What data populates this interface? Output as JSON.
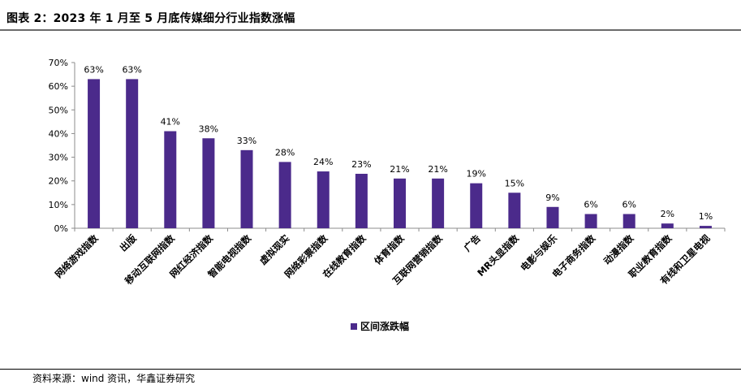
{
  "figure": {
    "title": "图表 2：2023 年 1 月至 5 月底传媒细分行业指数涨幅",
    "source": "资料来源：wind 资讯，华鑫证券研究"
  },
  "colors": {
    "bar": "#4b2a8b",
    "axis": "#8c8c8c",
    "rule": "#6b6b6b"
  },
  "chart_data": {
    "type": "bar",
    "title": "",
    "xlabel": "",
    "ylabel": "",
    "ylim": [
      0,
      70
    ],
    "yticks": [
      "0%",
      "10%",
      "20%",
      "30%",
      "40%",
      "50%",
      "60%",
      "70%"
    ],
    "grid": false,
    "legend_position": "bottom",
    "categories": [
      "网络游戏指数",
      "出版",
      "移动互联网指数",
      "网红经济指数",
      "智能电视指数",
      "虚拟现实",
      "网络彩票指数",
      "在线教育指数",
      "体育指数",
      "互联网营销指数",
      "广告",
      "MR头显指数",
      "电影与娱乐",
      "电子商务指数",
      "动漫指数",
      "职业教育指数",
      "有线和卫星电视"
    ],
    "series": [
      {
        "name": "区间涨跌幅",
        "values": [
          63,
          63,
          41,
          38,
          33,
          28,
          24,
          23,
          21,
          21,
          19,
          15,
          9,
          6,
          6,
          2,
          1
        ],
        "labels": [
          "63%",
          "63%",
          "41%",
          "38%",
          "33%",
          "28%",
          "24%",
          "23%",
          "21%",
          "21%",
          "19%",
          "15%",
          "9%",
          "6%",
          "6%",
          "2%",
          "1%"
        ]
      }
    ]
  }
}
